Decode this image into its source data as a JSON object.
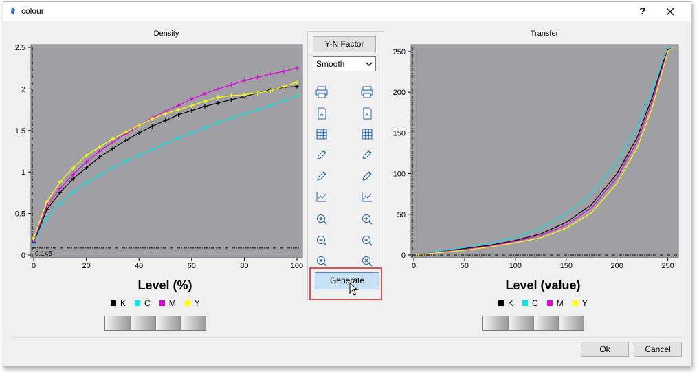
{
  "window": {
    "title": "colour",
    "help_label": "?"
  },
  "density_chart": {
    "title": "Density",
    "xlabel": "Level (%)",
    "xticks": [
      "0",
      "20",
      "40",
      "60",
      "80",
      "100"
    ],
    "yticks": [
      "0",
      "0.5",
      "1",
      "1.5",
      "2",
      "2.5"
    ],
    "crosshair_readout": "0.145"
  },
  "transfer_chart": {
    "title": "Transfer",
    "xlabel": "Level (value)",
    "xticks": [
      "0",
      "50",
      "100",
      "150",
      "200",
      "250"
    ],
    "yticks": [
      "0",
      "50",
      "100",
      "150",
      "200",
      "250"
    ]
  },
  "legend": {
    "items": [
      {
        "label": "K",
        "color": "#000000"
      },
      {
        "label": "C",
        "color": "#00e5e5"
      },
      {
        "label": "M",
        "color": "#e000e0"
      },
      {
        "label": "Y",
        "color": "#ffff00"
      }
    ]
  },
  "toolbar": {
    "yn_factor_label": "Y-N Factor",
    "smooth_value": "Smooth",
    "generate_label": "Generate",
    "tool_icons": [
      "printer-icon",
      "pdf-icon",
      "grid-icon",
      "pencil-icon",
      "pencil-icon",
      "chart-icon",
      "zoom-in-icon",
      "zoom-out-icon",
      "zoom-reset-icon"
    ]
  },
  "footer": {
    "ok_label": "Ok",
    "cancel_label": "Cancel"
  },
  "colors": {
    "plot_bg": "#a0a0a4",
    "highlight": "#e05050",
    "accent": "#4f8ed3"
  },
  "chart_data": [
    {
      "type": "line",
      "title": "Density",
      "xlabel": "Level (%)",
      "ylabel": "",
      "xlim": [
        0,
        100
      ],
      "ylim": [
        0,
        2.5
      ],
      "x": [
        0,
        5,
        10,
        15,
        20,
        25,
        30,
        35,
        40,
        45,
        50,
        55,
        60,
        65,
        70,
        75,
        80,
        85,
        90,
        95,
        100
      ],
      "series": [
        {
          "name": "K",
          "color": "#000000",
          "values": [
            0.15,
            0.55,
            0.75,
            0.92,
            1.05,
            1.18,
            1.28,
            1.38,
            1.47,
            1.55,
            1.62,
            1.69,
            1.74,
            1.79,
            1.83,
            1.87,
            1.91,
            1.95,
            1.99,
            2.02,
            2.03
          ]
        },
        {
          "name": "C",
          "color": "#00e5e5",
          "values": [
            0.14,
            0.45,
            0.62,
            0.76,
            0.87,
            0.96,
            1.05,
            1.13,
            1.2,
            1.27,
            1.34,
            1.41,
            1.47,
            1.53,
            1.6,
            1.65,
            1.7,
            1.75,
            1.8,
            1.86,
            1.92
          ]
        },
        {
          "name": "M",
          "color": "#e000e0",
          "values": [
            0.16,
            0.6,
            0.8,
            0.97,
            1.12,
            1.25,
            1.36,
            1.46,
            1.56,
            1.65,
            1.73,
            1.8,
            1.88,
            1.94,
            2.0,
            2.05,
            2.1,
            2.14,
            2.18,
            2.21,
            2.25
          ]
        },
        {
          "name": "Y",
          "color": "#ffff00",
          "values": [
            0.2,
            0.64,
            0.88,
            1.05,
            1.2,
            1.3,
            1.4,
            1.48,
            1.56,
            1.64,
            1.7,
            1.75,
            1.8,
            1.85,
            1.9,
            1.92,
            1.93,
            1.95,
            1.98,
            2.03,
            2.08
          ]
        }
      ]
    },
    {
      "type": "line",
      "title": "Transfer",
      "xlabel": "Level (value)",
      "ylabel": "",
      "xlim": [
        0,
        255
      ],
      "ylim": [
        0,
        255
      ],
      "x": [
        0,
        25,
        50,
        75,
        100,
        125,
        150,
        175,
        200,
        220,
        235,
        245,
        250,
        255
      ],
      "series": [
        {
          "name": "K",
          "color": "#000000",
          "values": [
            0,
            4,
            8,
            12,
            18,
            26,
            40,
            62,
            100,
            145,
            195,
            235,
            252,
            255
          ]
        },
        {
          "name": "C",
          "color": "#00e5e5",
          "values": [
            0,
            5,
            9,
            14,
            22,
            33,
            50,
            76,
            114,
            158,
            205,
            240,
            254,
            255
          ]
        },
        {
          "name": "M",
          "color": "#e000e0",
          "values": [
            0,
            4,
            7,
            11,
            17,
            24,
            37,
            58,
            95,
            140,
            190,
            232,
            251,
            255
          ]
        },
        {
          "name": "Y",
          "color": "#ffff00",
          "values": [
            0,
            3,
            6,
            10,
            15,
            21,
            33,
            52,
            88,
            132,
            182,
            228,
            250,
            255
          ]
        }
      ]
    }
  ]
}
